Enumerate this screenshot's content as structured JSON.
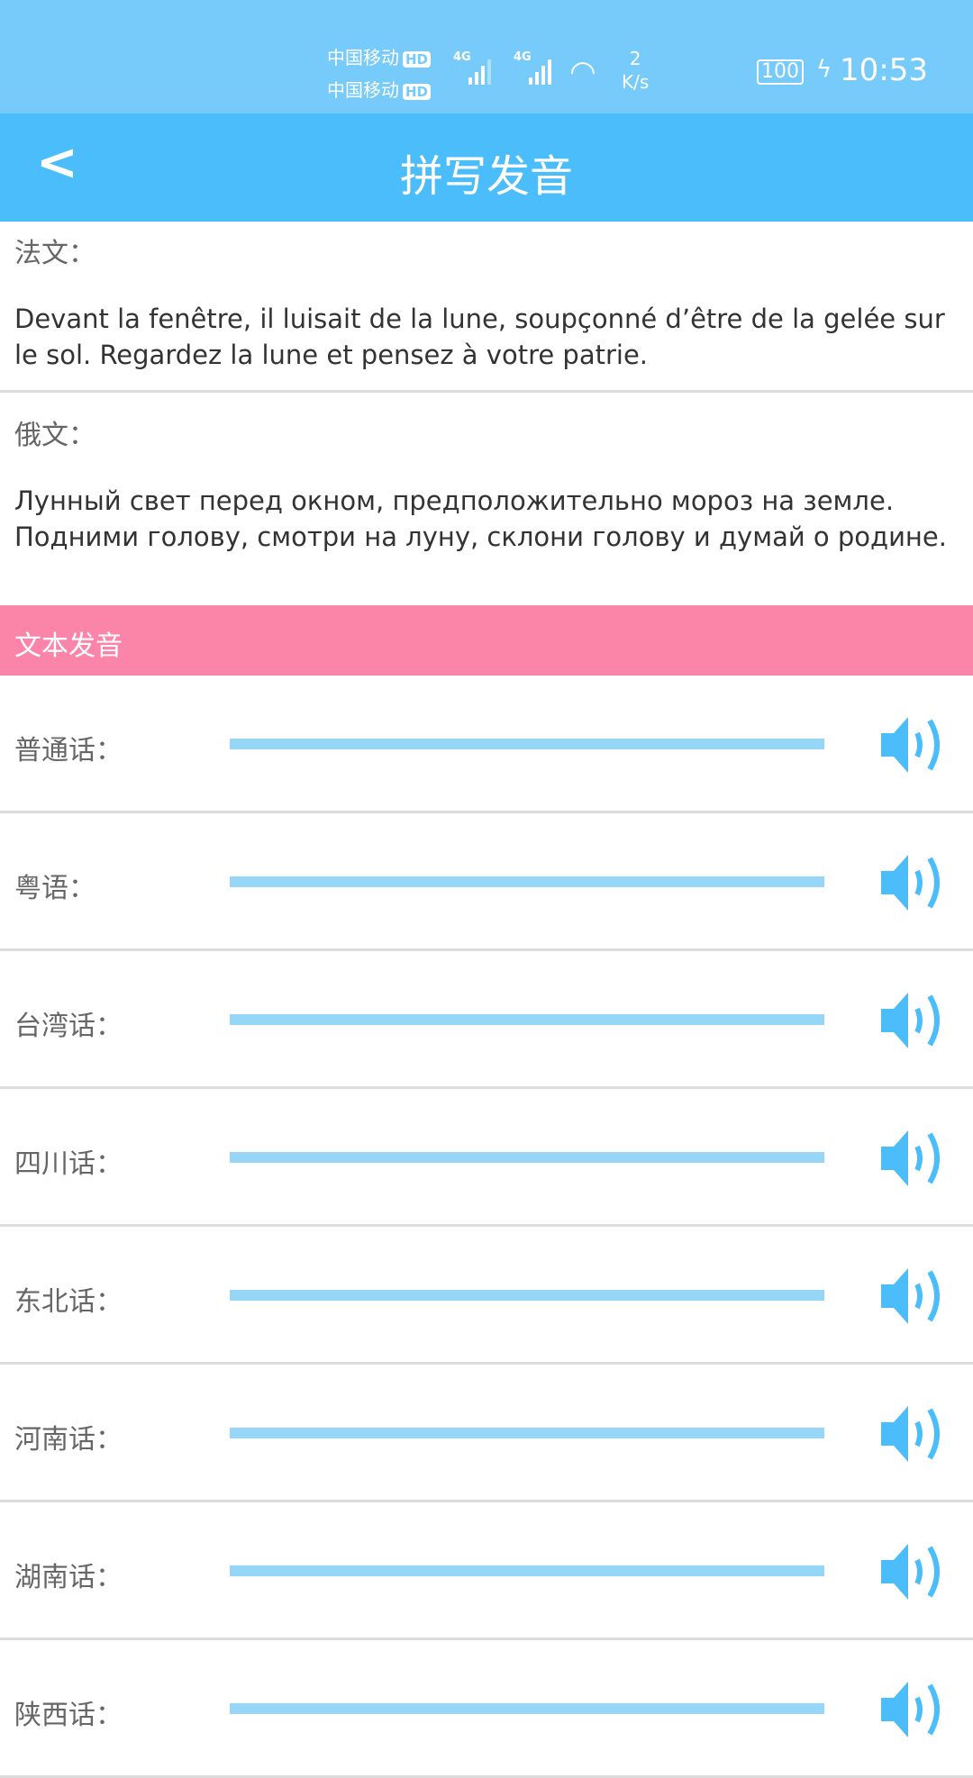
{
  "status_bar": {
    "carrier1": "中国移动",
    "carrier2": "中国移动",
    "hd": "HD",
    "network1": "4G",
    "network2": "4G",
    "speed_value": "2",
    "speed_unit": "K/s",
    "battery": "100",
    "time": "10:53"
  },
  "header": {
    "title": "拼写发音",
    "back_icon": "chevron-left-icon"
  },
  "french": {
    "label": "法文：",
    "text": "Devant la fenêtre, il luisait de la lune, soupçonné d’être de la gelée sur le sol. Regardez la lune et pensez à votre patrie."
  },
  "russian": {
    "label": "俄文：",
    "text": "Лунный свет перед окном, предположительно мороз на земле. Подними голову, смотри на луну, склони голову и думай о родине."
  },
  "section": {
    "title": "文本发音"
  },
  "dialects": [
    {
      "label": "普通话："
    },
    {
      "label": "粤语："
    },
    {
      "label": "台湾话："
    },
    {
      "label": "四川话："
    },
    {
      "label": "东北话："
    },
    {
      "label": "河南话："
    },
    {
      "label": "湖南话："
    },
    {
      "label": "陕西话："
    }
  ],
  "colors": {
    "status": "#76cbfa",
    "header": "#4bbdfa",
    "section": "#fa85a9",
    "slider": "#96d7f8",
    "speaker": "#4bbdfa"
  }
}
